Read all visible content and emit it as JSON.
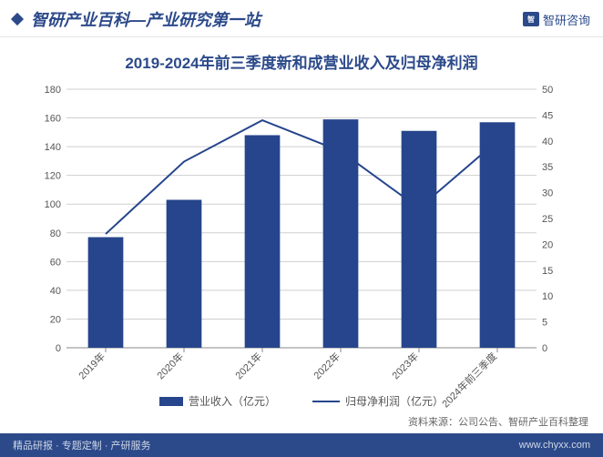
{
  "header": {
    "title": "智研产业百科—产业研究第一站",
    "brand_logo_text": "智",
    "brand_text": "智研咨询"
  },
  "chart": {
    "type": "bar+line",
    "title": "2019-2024年前三季度新和成营业收入及归母净利润",
    "categories": [
      "2019年",
      "2020年",
      "2021年",
      "2022年",
      "2023年",
      "2024年前三季度"
    ],
    "bar_series": {
      "label": "营业收入（亿元）",
      "values": [
        77,
        103,
        148,
        159,
        151,
        157
      ],
      "color": "#26458c"
    },
    "line_series": {
      "label": "归母净利润（亿元）",
      "values": [
        22,
        36,
        44,
        38,
        27,
        40
      ],
      "color": "#26458c"
    },
    "left_axis": {
      "min": 0,
      "max": 180,
      "step": 20,
      "label_fontsize": 11
    },
    "right_axis": {
      "min": 0,
      "max": 50,
      "step": 5,
      "label_fontsize": 11
    },
    "background_color": "#ffffff",
    "grid_color": "#cfcfcf",
    "bar_width_ratio": 0.45,
    "line_width": 2,
    "xaxis_label_rotation": -45
  },
  "source": "资料来源：公司公告、智研产业百科整理",
  "footer": {
    "left": "精品研报 · 专题定制 · 产研服务",
    "right": "www.chyxx.com"
  }
}
